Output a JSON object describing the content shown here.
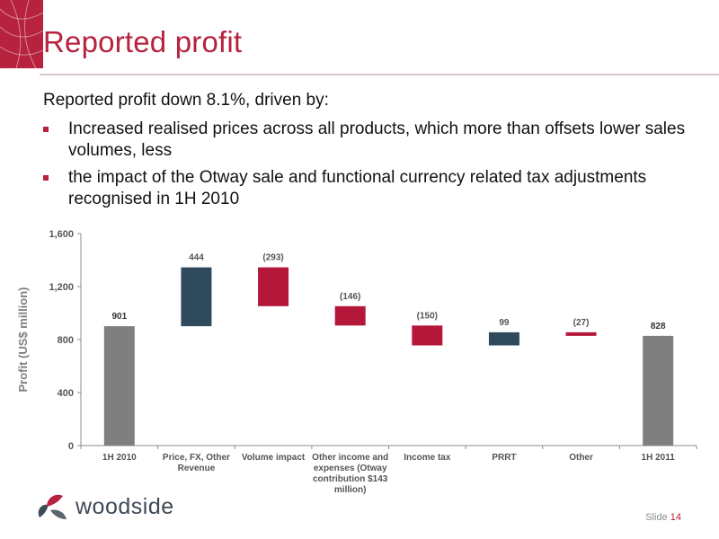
{
  "title": "Reported profit",
  "intro": "Reported profit down 8.1%, driven by:",
  "bullets": [
    "Increased realised prices across all products, which more than offsets lower sales volumes, less",
    "the impact of the Otway sale and functional currency related tax adjustments recognised in 1H 2010"
  ],
  "colors": {
    "accent": "#b7223f",
    "total": "#7f7f7f",
    "increase": "#2e4a5c",
    "decrease": "#b5173a",
    "text": "#111111"
  },
  "chart_data": {
    "type": "bar",
    "subtype": "waterfall",
    "ylabel": "Profit (US$ million)",
    "ylim": [
      0,
      1600
    ],
    "yticks": [
      0,
      400,
      800,
      1200,
      1600
    ],
    "ytick_labels": [
      "0",
      "400",
      "800",
      "1,200",
      "1,600"
    ],
    "grid": false,
    "categories": [
      "1H 2010",
      "Price, FX, Other Revenue",
      "Volume impact",
      "Other income and expenses (Otway contribution $143 million)",
      "Income tax",
      "PRRT",
      "Other",
      "1H 2011"
    ],
    "category_lines": [
      [
        "1H 2010"
      ],
      [
        "Price, FX, Other",
        "Revenue"
      ],
      [
        "Volume impact"
      ],
      [
        "Other income and",
        "expenses (Otway",
        "contribution $143",
        "million)"
      ],
      [
        "Income tax"
      ],
      [
        "PRRT"
      ],
      [
        "Other"
      ],
      [
        "1H 2011"
      ]
    ],
    "values": [
      901,
      444,
      -293,
      -146,
      -150,
      99,
      -27,
      828
    ],
    "kinds": [
      "total",
      "delta",
      "delta",
      "delta",
      "delta",
      "delta",
      "delta",
      "total"
    ],
    "data_labels": [
      "901",
      "444",
      "(293)",
      "(146)",
      "(150)",
      "99",
      "(27)",
      "828"
    ]
  },
  "logo": {
    "text": "woodside",
    "icon": "woodside-leaf-logo-icon"
  },
  "footer": {
    "slide_label": "Slide",
    "slide_number": "14"
  }
}
